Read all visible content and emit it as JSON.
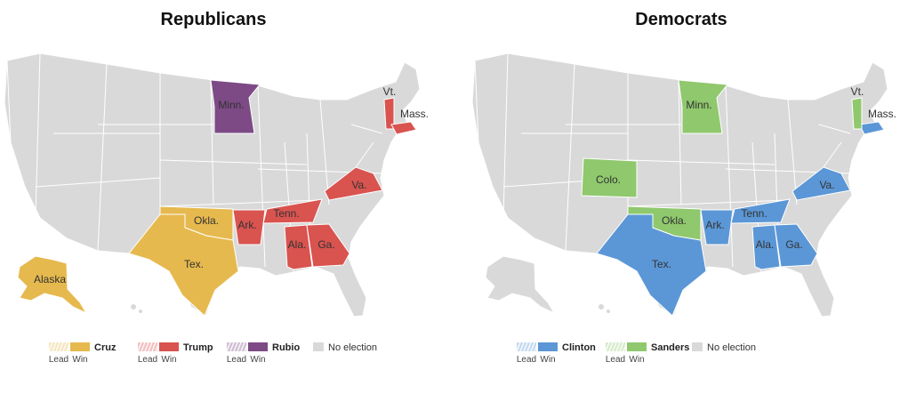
{
  "maps": [
    {
      "title": "Republicans",
      "candidates": [
        {
          "name": "Cruz",
          "color": "#e6b94e",
          "lead_label": "Lead",
          "win_label": "Win",
          "states": [
            "Okla.",
            "Tex.",
            "Alaska"
          ]
        },
        {
          "name": "Trump",
          "color": "#d9534f",
          "lead_label": "Lead",
          "win_label": "Win",
          "states": [
            "Vt.",
            "Mass.",
            "Ark.",
            "Tenn.",
            "Va.",
            "Ala.",
            "Ga."
          ]
        },
        {
          "name": "Rubio",
          "color": "#7d4a86",
          "lead_label": "Lead",
          "win_label": "Win",
          "states": [
            "Minn."
          ]
        }
      ],
      "no_election": "No election"
    },
    {
      "title": "Democrats",
      "candidates": [
        {
          "name": "Clinton",
          "color": "#5b97d6",
          "lead_label": "Lead",
          "win_label": "Win",
          "states": [
            "Mass.",
            "Ark.",
            "Tenn.",
            "Va.",
            "Ala.",
            "Ga.",
            "Tex."
          ]
        },
        {
          "name": "Sanders",
          "color": "#8fc86d",
          "lead_label": "Lead",
          "win_label": "Win",
          "states": [
            "Vt.",
            "Minn.",
            "Colo.",
            "Okla."
          ]
        }
      ],
      "no_election": "No election"
    }
  ]
}
